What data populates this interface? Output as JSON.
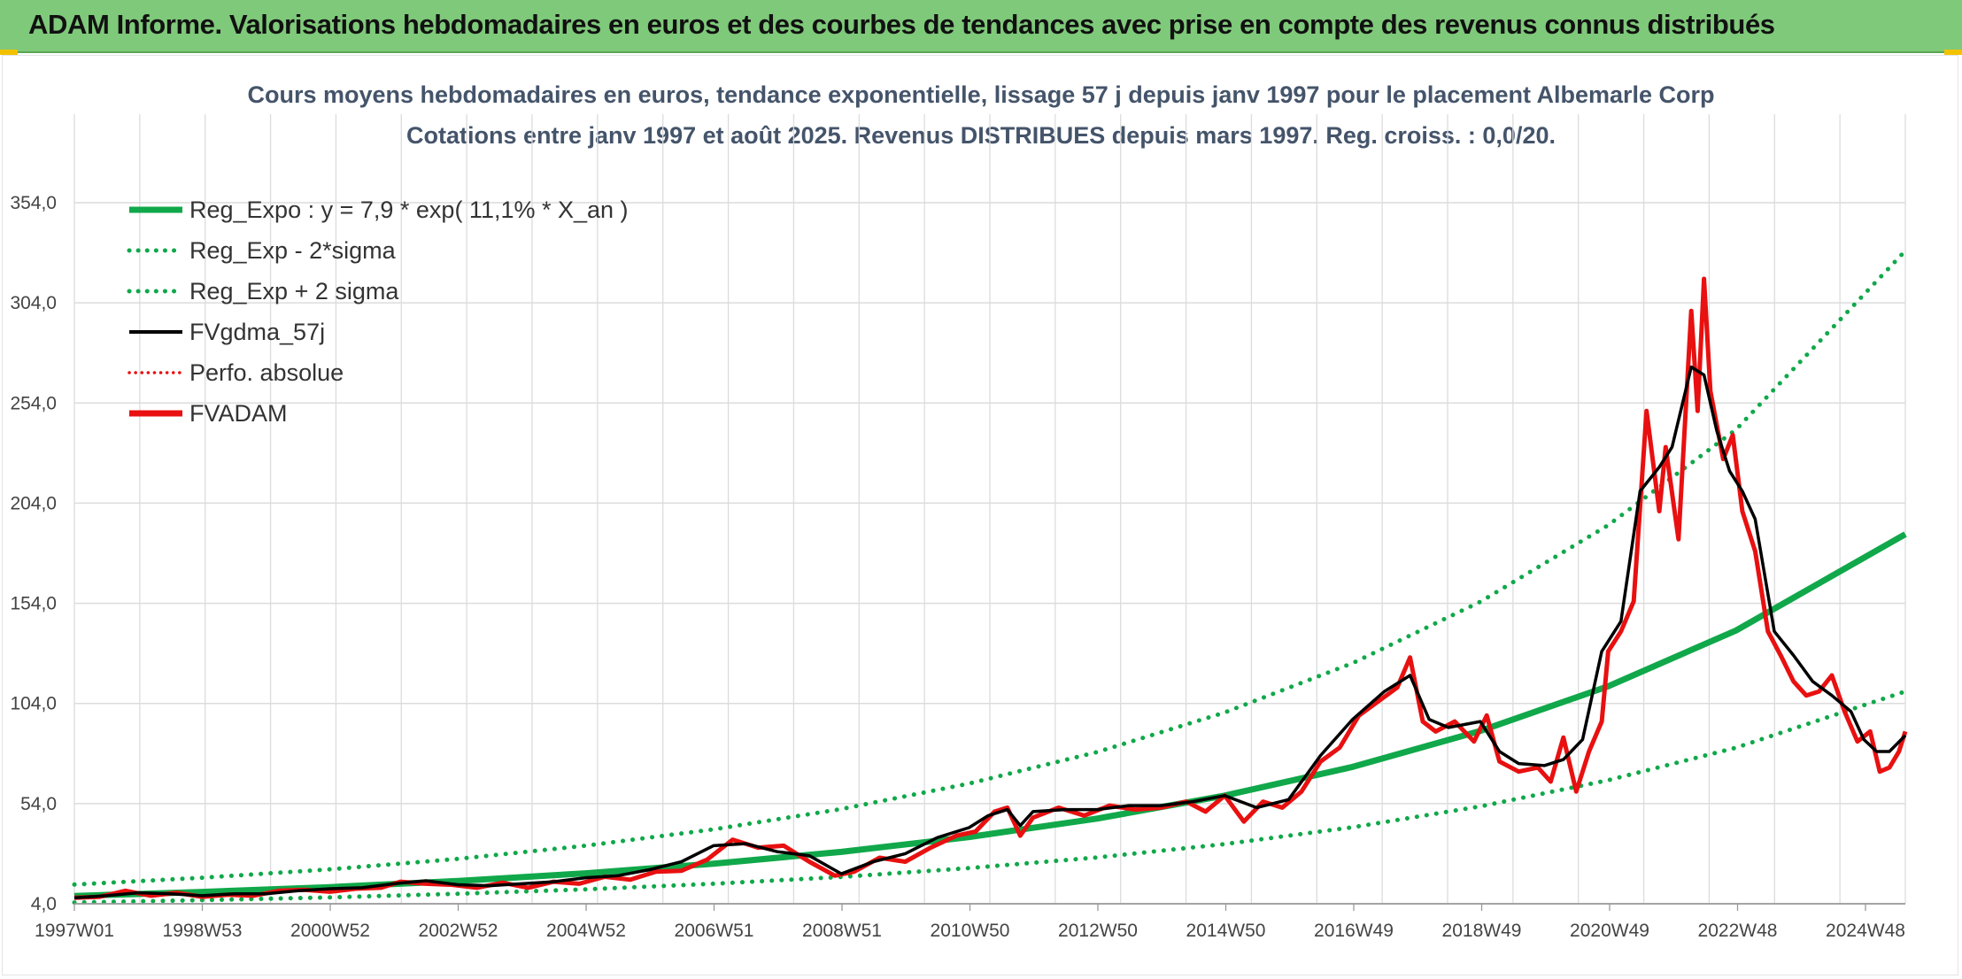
{
  "header": {
    "title": "ADAM Informe. Valorisations hebdomadaires en euros et des courbes de tendances avec prise en compte des revenus connus distribués"
  },
  "colors": {
    "header_bg": "#7fc97a",
    "reg_expo": "#10a84a",
    "bands": "#10a84a",
    "fvgdma": "#000000",
    "perfo": "#e81010",
    "fvadam": "#e81010",
    "grid": "#dcdcdc"
  },
  "chart_data": {
    "type": "line",
    "title_line1": "Cours moyens hebdomadaires en euros, tendance exponentielle, lissage 57 j depuis janv 1997 pour le placement Albemarle Corp",
    "title_line2": "Cotations entre janv 1997 et août 2025. Revenus DISTRIBUES depuis mars 1997. Reg. croiss. : 0,0/20.",
    "x_ticks": [
      "1997W01",
      "1998W53",
      "2000W52",
      "2002W52",
      "2004W52",
      "2006W51",
      "2008W51",
      "2010W50",
      "2012W50",
      "2014W50",
      "2016W49",
      "2018W49",
      "2020W49",
      "2022W48",
      "2024W48"
    ],
    "x_range": [
      1997.0,
      2025.65
    ],
    "y_ticks": [
      "4,0",
      "54,0",
      "104,0",
      "154,0",
      "204,0",
      "254,0",
      "304,0",
      "354,0"
    ],
    "ylim": [
      4,
      354
    ],
    "grid": true,
    "legend_position": "top-left",
    "legend": [
      {
        "label": "Reg_Expo : y = 7,9 * exp( 11,1% *  X_an )",
        "style": "solid-thick",
        "color": "#10a84a"
      },
      {
        "label": "Reg_Exp - 2*sigma",
        "style": "dotted",
        "color": "#10a84a"
      },
      {
        "label": "Reg_Exp + 2 sigma",
        "style": "dotted",
        "color": "#10a84a"
      },
      {
        "label": "FVgdma_57j",
        "style": "solid",
        "color": "#000000"
      },
      {
        "label": "Perfo. absolue",
        "style": "dotted-thin",
        "color": "#e81010"
      },
      {
        "label": "FVADAM",
        "style": "solid-thick",
        "color": "#e81010"
      }
    ],
    "series": [
      {
        "name": "Reg_Expo : y = 7,9 * exp( 11,1% *  X_an )",
        "x": [
          1997.0,
          1999.0,
          2001.0,
          2003.0,
          2005.0,
          2007.0,
          2009.0,
          2011.0,
          2013.0,
          2015.0,
          2017.0,
          2019.0,
          2021.0,
          2023.0,
          2025.65
        ],
        "y": [
          7.9,
          9.9,
          12.3,
          15.4,
          19.2,
          24.0,
          29.9,
          37.3,
          46.5,
          58.0,
          72.3,
          90.3,
          112.6,
          140.4,
          188.5
        ]
      },
      {
        "name": "Reg_Exp - 2*sigma",
        "x": [
          1997.0,
          1999.0,
          2001.0,
          2003.0,
          2005.0,
          2007.0,
          2009.0,
          2011.0,
          2013.0,
          2015.0,
          2017.0,
          2019.0,
          2021.0,
          2023.0,
          2025.65
        ],
        "y": [
          4.6,
          5.8,
          7.2,
          9.0,
          11.2,
          14.0,
          17.4,
          21.8,
          27.1,
          33.8,
          42.2,
          52.6,
          65.7,
          81.9,
          110.0
        ]
      },
      {
        "name": "Reg_Exp + 2 sigma",
        "x": [
          1997.0,
          1999.0,
          2001.0,
          2003.0,
          2005.0,
          2007.0,
          2009.0,
          2011.0,
          2013.0,
          2015.0,
          2017.0,
          2019.0,
          2021.0,
          2023.0,
          2025.65
        ],
        "y": [
          13.6,
          17.0,
          21.2,
          26.4,
          33.0,
          41.1,
          51.3,
          64.0,
          79.7,
          99.5,
          124.1,
          154.8,
          193.0,
          240.7,
          330.0
        ]
      },
      {
        "name": "FVgdma_57j",
        "x": [
          1997.0,
          1997.5,
          1998.0,
          1998.5,
          1999.0,
          1999.5,
          2000.0,
          2000.5,
          2001.0,
          2001.5,
          2002.0,
          2002.5,
          2003.0,
          2003.5,
          2004.0,
          2004.5,
          2005.0,
          2005.5,
          2006.0,
          2006.5,
          2007.0,
          2007.5,
          2008.0,
          2008.5,
          2009.0,
          2009.5,
          2010.0,
          2010.5,
          2011.0,
          2011.3,
          2011.6,
          2011.8,
          2012.0,
          2012.5,
          2013.0,
          2013.5,
          2014.0,
          2014.5,
          2015.0,
          2015.5,
          2016.0,
          2016.5,
          2017.0,
          2017.5,
          2017.9,
          2018.2,
          2018.5,
          2019.0,
          2019.3,
          2019.6,
          2020.0,
          2020.3,
          2020.6,
          2020.9,
          2021.2,
          2021.5,
          2021.8,
          2022.0,
          2022.3,
          2022.5,
          2022.7,
          2022.9,
          2023.1,
          2023.3,
          2023.6,
          2023.9,
          2024.2,
          2024.5,
          2024.8,
          2025.0,
          2025.2,
          2025.4,
          2025.65
        ],
        "y": [
          7.0,
          8.0,
          9.5,
          9.0,
          8.0,
          9.0,
          9.0,
          10.5,
          11.5,
          12.0,
          14.0,
          15.5,
          13.5,
          13.0,
          14.0,
          15.0,
          17.0,
          18.0,
          21.0,
          25.0,
          33.0,
          34.0,
          30.0,
          28.0,
          19.0,
          25.0,
          29.0,
          37.0,
          42.0,
          48.0,
          51.0,
          43.0,
          50.0,
          51.0,
          51.0,
          53.0,
          53.0,
          55.0,
          58.0,
          52.0,
          56.0,
          78.0,
          96.0,
          110.0,
          118.0,
          96.0,
          92.0,
          95.0,
          80.0,
          74.0,
          73.0,
          76.0,
          86.0,
          130.0,
          145.0,
          210.0,
          222.0,
          232.0,
          272.0,
          268.0,
          240.0,
          220.0,
          210.0,
          196.0,
          140.0,
          128.0,
          115.0,
          108.0,
          100.0,
          86.0,
          80.0,
          80.0,
          88.0
        ]
      },
      {
        "name": "FVADAM",
        "x": [
          1997.0,
          1997.4,
          1997.8,
          1998.2,
          1998.6,
          1999.0,
          1999.4,
          1999.8,
          2000.2,
          2000.6,
          2001.0,
          2001.4,
          2001.8,
          2002.1,
          2002.5,
          2002.9,
          2003.3,
          2003.7,
          2004.1,
          2004.5,
          2004.9,
          2005.3,
          2005.7,
          2006.1,
          2006.5,
          2006.9,
          2007.3,
          2007.7,
          2008.1,
          2008.5,
          2008.9,
          2009.2,
          2009.6,
          2010.0,
          2010.4,
          2010.8,
          2011.1,
          2011.4,
          2011.6,
          2011.8,
          2012.0,
          2012.4,
          2012.8,
          2013.2,
          2013.6,
          2014.0,
          2014.4,
          2014.7,
          2015.0,
          2015.3,
          2015.6,
          2015.9,
          2016.2,
          2016.5,
          2016.8,
          2017.1,
          2017.4,
          2017.7,
          2017.9,
          2018.1,
          2018.3,
          2018.6,
          2018.9,
          2019.1,
          2019.3,
          2019.6,
          2019.9,
          2020.1,
          2020.3,
          2020.5,
          2020.7,
          2020.9,
          2021.0,
          2021.2,
          2021.4,
          2021.6,
          2021.8,
          2021.9,
          2022.1,
          2022.3,
          2022.4,
          2022.5,
          2022.6,
          2022.8,
          2022.95,
          2023.1,
          2023.3,
          2023.5,
          2023.7,
          2023.9,
          2024.1,
          2024.3,
          2024.5,
          2024.7,
          2024.9,
          2025.1,
          2025.25,
          2025.4,
          2025.55,
          2025.65
        ],
        "y": [
          7.0,
          7.5,
          10.5,
          8.0,
          9.5,
          7.5,
          8.5,
          8.0,
          10.5,
          11.0,
          10.0,
          11.5,
          12.0,
          15.0,
          14.0,
          13.5,
          12.0,
          14.5,
          12.0,
          15.0,
          14.0,
          17.5,
          16.0,
          20.0,
          20.5,
          26.0,
          36.0,
          32.0,
          33.0,
          25.0,
          18.0,
          20.0,
          27.0,
          25.0,
          32.0,
          38.0,
          40.0,
          50.0,
          52.0,
          38.0,
          47.0,
          52.0,
          48.0,
          53.0,
          51.0,
          52.0,
          55.0,
          50.0,
          58.0,
          45.0,
          55.0,
          52.0,
          60.0,
          75.0,
          82.0,
          98.0,
          105.0,
          112.0,
          127.0,
          95.0,
          90.0,
          95.0,
          85.0,
          98.0,
          75.0,
          70.0,
          72.0,
          65.0,
          87.0,
          60.0,
          80.0,
          95.0,
          130.0,
          140.0,
          155.0,
          250.0,
          200.0,
          232.0,
          186.0,
          300.0,
          250.0,
          316.0,
          260.0,
          226.0,
          238.0,
          200.0,
          180.0,
          140.0,
          128.0,
          115.0,
          108.0,
          110.0,
          118.0,
          100.0,
          85.0,
          90.0,
          70.0,
          72.0,
          80.0,
          90.0
        ]
      }
    ]
  }
}
